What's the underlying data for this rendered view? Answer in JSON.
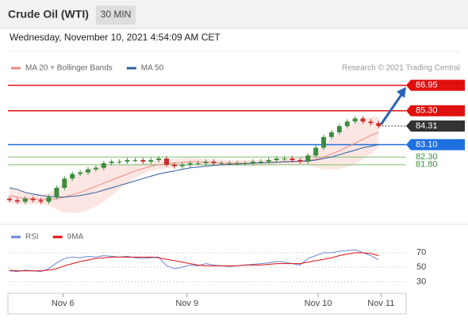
{
  "header": {
    "title": "Crude Oil (WTI)",
    "timeframe": "30 MIN",
    "timestamp": "Wednesday, November 10, 2021 4:54:09 AM CET",
    "watermark": "Research © 2021 Trading Central"
  },
  "chart_data": [
    {
      "type": "candlestick",
      "open": [
        79.6,
        79.5,
        79.4,
        79.6,
        79.5,
        79.4,
        79.7,
        80.3,
        80.9,
        81.2,
        81.3,
        81.5,
        81.6,
        81.9,
        82.0,
        82.0,
        82.1,
        82.1,
        82.0,
        82.1,
        82.2,
        81.8,
        81.7,
        81.8,
        81.9,
        81.9,
        82.0,
        81.9,
        81.9,
        81.9,
        81.9,
        81.9,
        82.0,
        82.0,
        82.1,
        82.2,
        82.2,
        82.1,
        82.0,
        82.4,
        82.9,
        83.6,
        83.9,
        84.3,
        84.6,
        84.8,
        84.6,
        84.5
      ],
      "high": [
        79.75,
        79.65,
        79.75,
        79.75,
        79.65,
        79.85,
        80.45,
        81.05,
        81.35,
        81.45,
        81.65,
        81.75,
        82.05,
        82.15,
        82.15,
        82.25,
        82.25,
        82.25,
        82.25,
        82.35,
        82.35,
        81.95,
        81.95,
        82.05,
        82.05,
        82.15,
        82.15,
        82.05,
        82.05,
        82.05,
        82.05,
        82.15,
        82.15,
        82.25,
        82.35,
        82.35,
        82.35,
        82.25,
        82.55,
        83.05,
        83.75,
        84.05,
        84.45,
        84.75,
        84.95,
        84.95,
        84.75,
        84.65
      ],
      "low": [
        79.35,
        79.25,
        79.25,
        79.35,
        79.25,
        79.25,
        79.55,
        80.15,
        80.75,
        81.05,
        81.15,
        81.35,
        81.45,
        81.75,
        81.85,
        81.85,
        81.95,
        81.85,
        81.85,
        81.95,
        81.65,
        81.55,
        81.55,
        81.65,
        81.75,
        81.75,
        81.75,
        81.75,
        81.75,
        81.75,
        81.75,
        81.75,
        81.85,
        81.85,
        81.95,
        82.05,
        81.95,
        81.85,
        81.85,
        82.25,
        82.75,
        83.45,
        83.75,
        84.15,
        84.45,
        84.45,
        84.35,
        84.16
      ],
      "close": [
        79.5,
        79.4,
        79.6,
        79.5,
        79.4,
        79.7,
        80.3,
        80.9,
        81.2,
        81.3,
        81.5,
        81.6,
        81.9,
        82.0,
        82.0,
        82.1,
        82.1,
        82.0,
        82.1,
        82.2,
        81.8,
        81.7,
        81.8,
        81.9,
        81.9,
        82.0,
        81.9,
        81.9,
        81.9,
        81.9,
        81.9,
        82.0,
        82.0,
        82.1,
        82.2,
        82.2,
        82.1,
        82.0,
        82.4,
        82.9,
        83.6,
        83.9,
        84.3,
        84.6,
        84.8,
        84.6,
        84.5,
        84.31
      ],
      "up_color": "#3c8c3c",
      "down_color": "#cc2a2a",
      "xlim": [
        -0.2,
        50.5
      ],
      "ylim": [
        78.5,
        87.6
      ],
      "series": [
        {
          "name": "MA 20 + Bollinger Bands",
          "color": "#f08a80",
          "values": [
            79.8,
            79.7,
            79.6,
            79.6,
            79.55,
            79.55,
            79.6,
            79.7,
            79.85,
            80.0,
            80.2,
            80.4,
            80.6,
            80.8,
            81.0,
            81.2,
            81.4,
            81.55,
            81.7,
            81.8,
            81.85,
            81.9,
            81.95,
            82.0,
            82.0,
            81.95,
            81.95,
            81.9,
            81.9,
            81.9,
            81.9,
            81.9,
            81.92,
            81.95,
            81.97,
            82.0,
            82.02,
            82.03,
            82.08,
            82.15,
            82.3,
            82.5,
            82.7,
            82.95,
            83.2,
            83.45,
            83.7,
            83.9
          ],
          "upper": [
            80.3,
            80.15,
            80.0,
            79.95,
            79.9,
            79.95,
            80.3,
            80.7,
            81.05,
            81.3,
            81.55,
            81.7,
            81.8,
            81.8,
            81.8,
            81.8,
            81.85,
            81.9,
            82.0,
            82.1,
            82.15,
            82.2,
            82.2,
            82.25,
            82.22,
            82.15,
            82.15,
            82.1,
            82.1,
            82.1,
            82.1,
            82.1,
            82.12,
            82.15,
            82.19,
            82.22,
            82.24,
            82.25,
            82.38,
            82.65,
            83.1,
            83.5,
            83.9,
            84.25,
            84.55,
            84.75,
            84.9,
            84.9
          ],
          "lower": [
            79.3,
            79.25,
            79.2,
            79.25,
            79.2,
            79.15,
            78.9,
            78.7,
            78.65,
            78.7,
            78.85,
            79.1,
            79.4,
            79.8,
            80.2,
            80.6,
            80.95,
            81.2,
            81.4,
            81.5,
            81.55,
            81.6,
            81.7,
            81.75,
            81.78,
            81.75,
            81.75,
            81.7,
            81.7,
            81.7,
            81.7,
            81.7,
            81.72,
            81.75,
            81.75,
            81.78,
            81.8,
            81.81,
            81.78,
            81.65,
            81.5,
            81.5,
            81.5,
            81.65,
            81.85,
            82.15,
            82.5,
            82.9
          ],
          "band_color": "#fbe0dc"
        },
        {
          "name": "MA 50",
          "color": "#2f5d9e",
          "values": [
            80.3,
            80.2,
            80.0,
            79.9,
            79.8,
            79.75,
            79.7,
            79.7,
            79.75,
            79.8,
            79.9,
            80.0,
            80.15,
            80.3,
            80.45,
            80.6,
            80.75,
            80.9,
            81.05,
            81.2,
            81.3,
            81.4,
            81.5,
            81.6,
            81.65,
            81.7,
            81.75,
            81.8,
            81.82,
            81.85,
            81.87,
            81.9,
            81.92,
            81.94,
            81.96,
            81.98,
            82.0,
            82.02,
            82.05,
            82.1,
            82.2,
            82.3,
            82.45,
            82.6,
            82.75,
            82.9,
            83.0,
            83.1
          ]
        }
      ],
      "levels": [
        {
          "value": 86.95,
          "label": "86.95",
          "color": "#e01010",
          "boxed": true,
          "dotted": false
        },
        {
          "value": 85.3,
          "label": "85.30",
          "color": "#e01010",
          "boxed": true,
          "dotted": false
        },
        {
          "value": 84.31,
          "label": "84.31",
          "color": "#333333",
          "boxed": true,
          "dotted": true
        },
        {
          "value": 83.1,
          "label": "83.10",
          "color": "#1e6fe0",
          "boxed": true,
          "dotted": false
        },
        {
          "value": 82.3,
          "label": "82.30",
          "color": "#7cbf6c",
          "boxed": false,
          "dotted": false
        },
        {
          "value": 81.8,
          "label": "81.80",
          "color": "#7cbf6c",
          "boxed": false,
          "dotted": false
        }
      ]
    },
    {
      "type": "line",
      "xlim": [
        -0.2,
        50.5
      ],
      "ylim": [
        12,
        84
      ],
      "yticks": [
        30,
        50,
        70
      ],
      "xticks": [
        {
          "value": 6.8,
          "label": "Nov 6"
        },
        {
          "value": 22.6,
          "label": "Nov 9"
        },
        {
          "value": 39.3,
          "label": "Nov 10"
        },
        {
          "value": 47.3,
          "label": "Nov 11"
        }
      ],
      "series": [
        {
          "name": "RSI",
          "color": "#6a86d8",
          "values": [
            45,
            44,
            46,
            45,
            44,
            48,
            56,
            62,
            64,
            63,
            65,
            64,
            66,
            65,
            64,
            65,
            63,
            62,
            63,
            64,
            52,
            48,
            50,
            53,
            52,
            55,
            53,
            52,
            51,
            52,
            53,
            54,
            55,
            56,
            58,
            57,
            55,
            53,
            62,
            66,
            70,
            70,
            72,
            73,
            74,
            70,
            66,
            60
          ]
        },
        {
          "name": "9MA",
          "color": "#e01010",
          "values": [
            46,
            45,
            45,
            45,
            45,
            46,
            48,
            52,
            55,
            58,
            60,
            62,
            63,
            64,
            64,
            64,
            64,
            64,
            64,
            63,
            61,
            59,
            57,
            55,
            53,
            52,
            52,
            52,
            52,
            52,
            53,
            53,
            53,
            54,
            55,
            55,
            55,
            55,
            57,
            59,
            61,
            63,
            66,
            68,
            70,
            70,
            69,
            66
          ]
        }
      ]
    }
  ]
}
